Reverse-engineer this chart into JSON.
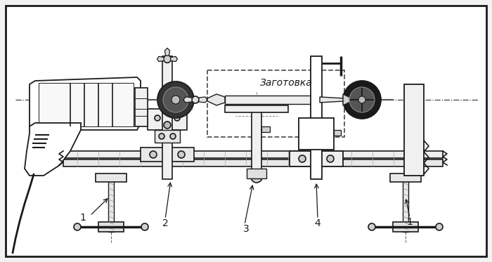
{
  "bg_color": "#f2f2f2",
  "border_color": "#1a1a1a",
  "line_color": "#1a1a1a",
  "fill_color": "#ffffff",
  "label_zaготовка": "Заготовка",
  "label_1a": "1",
  "label_1b": "1",
  "label_2": "2",
  "label_3": "3",
  "label_4": "4",
  "fig_width": 7.0,
  "fig_height": 3.73,
  "dpi": 100
}
